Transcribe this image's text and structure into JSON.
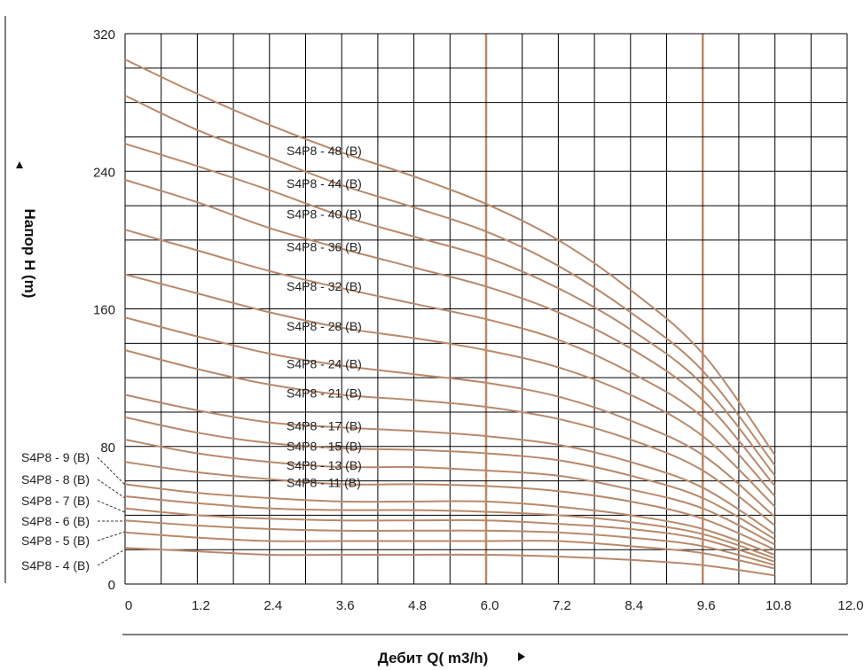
{
  "chart_data": {
    "type": "line",
    "title": "",
    "xlabel": "Дебит Q( m3/h)",
    "ylabel": "Напор H (m)",
    "xlim": [
      0,
      12
    ],
    "ylim": [
      0,
      320
    ],
    "x_ticks": [
      0,
      1.2,
      2.4,
      3.6,
      4.8,
      6.0,
      7.2,
      8.4,
      9.6,
      10.8,
      12.0
    ],
    "x_tick_labels": [
      "0",
      "1.2",
      "2.4",
      "3.6",
      "4.8",
      "6.0",
      "7.2",
      "8.4",
      "9.6",
      "10.8",
      "12.0"
    ],
    "y_ticks": [
      0,
      80,
      160,
      240,
      320
    ],
    "y_tick_labels": [
      "0",
      "80",
      "160",
      "240",
      "320"
    ],
    "grid": true,
    "highlighted_vertical_lines": [
      6.0,
      9.6
    ],
    "curve_color": "#b8896a",
    "series": [
      {
        "name": "S4P8 - 48 (B)",
        "x": [
          0,
          1.2,
          2.4,
          3.6,
          4.8,
          6.0,
          7.2,
          8.4,
          9.6,
          10.8
        ],
        "values": [
          305,
          285,
          267,
          251,
          237,
          221,
          200,
          171,
          134,
          75
        ]
      },
      {
        "name": "S4P8 - 44 (B)",
        "x": [
          0,
          1.2,
          2.4,
          3.6,
          4.8,
          6.0,
          7.2,
          8.4,
          9.6,
          10.8
        ],
        "values": [
          284,
          264,
          248,
          232,
          219,
          205,
          185,
          158,
          124,
          69
        ]
      },
      {
        "name": "S4P8 - 40 (B)",
        "x": [
          0,
          1.2,
          2.4,
          3.6,
          4.8,
          6.0,
          7.2,
          8.4,
          9.6,
          10.8
        ],
        "values": [
          256,
          243,
          229,
          214,
          202,
          190,
          172,
          148,
          116,
          63
        ]
      },
      {
        "name": "S4P8 - 36 (B)",
        "x": [
          0,
          1.2,
          2.4,
          3.6,
          4.8,
          6.0,
          7.2,
          8.4,
          9.6,
          10.8
        ],
        "values": [
          235,
          222,
          207,
          195,
          184,
          173,
          158,
          137,
          107,
          57
        ]
      },
      {
        "name": "S4P8 - 32 (B)",
        "x": [
          0,
          1.2,
          2.4,
          3.6,
          4.8,
          6.0,
          7.2,
          8.4,
          9.6,
          10.8
        ],
        "values": [
          206,
          194,
          182,
          172,
          163,
          154,
          142,
          123,
          97,
          51
        ]
      },
      {
        "name": "S4P8 - 28 (B)",
        "x": [
          0,
          1.2,
          2.4,
          3.6,
          4.8,
          6.0,
          7.2,
          8.4,
          9.6,
          10.8
        ],
        "values": [
          180,
          169,
          158,
          149,
          143,
          136,
          126,
          110,
          86,
          45
        ]
      },
      {
        "name": "S4P8 - 24 (B)",
        "x": [
          0,
          1.2,
          2.4,
          3.6,
          4.8,
          6.0,
          7.2,
          8.4,
          9.6,
          10.8
        ],
        "values": [
          155,
          144,
          134,
          127,
          122,
          117,
          109,
          95,
          75,
          39
        ]
      },
      {
        "name": "S4P8 - 21 (B)",
        "x": [
          0,
          1.2,
          2.4,
          3.6,
          4.8,
          6.0,
          7.2,
          8.4,
          9.6,
          10.8
        ],
        "values": [
          136,
          125,
          116,
          110,
          107,
          103,
          96,
          84,
          66,
          34
        ]
      },
      {
        "name": "S4P8 - 17 (B)",
        "x": [
          0,
          1.2,
          2.4,
          3.6,
          4.8,
          6.0,
          7.2,
          8.4,
          9.6,
          10.8
        ],
        "values": [
          110,
          101,
          94,
          91,
          89,
          86,
          81,
          71,
          56,
          29
        ]
      },
      {
        "name": "S4P8 - 15 (B)",
        "x": [
          0,
          1.2,
          2.4,
          3.6,
          4.8,
          6.0,
          7.2,
          8.4,
          9.6,
          10.8
        ],
        "values": [
          97,
          88,
          82,
          79,
          78,
          76,
          72,
          63,
          50,
          26
        ]
      },
      {
        "name": "S4P8 - 13 (B)",
        "x": [
          0,
          1.2,
          2.4,
          3.6,
          4.8,
          6.0,
          7.2,
          8.4,
          9.6,
          10.8
        ],
        "values": [
          84,
          76,
          71,
          68,
          68,
          66,
          63,
          55,
          44,
          23
        ]
      },
      {
        "name": "S4P8 - 11 (B)",
        "x": [
          0,
          1.2,
          2.4,
          3.6,
          4.8,
          6.0,
          7.2,
          8.4,
          9.6,
          10.8
        ],
        "values": [
          71,
          65,
          61,
          58,
          58,
          57,
          54,
          48,
          38,
          20
        ]
      },
      {
        "name": "S4P8 - 9 (B)",
        "x": [
          0,
          1.2,
          2.4,
          3.6,
          4.8,
          6.0,
          7.2,
          8.4,
          9.6,
          10.8
        ],
        "values": [
          58,
          53,
          50,
          48,
          48,
          48,
          45,
          40,
          32,
          17
        ]
      },
      {
        "name": "S4P8 - 8 (B)",
        "x": [
          0,
          1.2,
          2.4,
          3.6,
          4.8,
          6.0,
          7.2,
          8.4,
          9.6,
          10.8
        ],
        "values": [
          51,
          47,
          44,
          43,
          43,
          42,
          40,
          36,
          29,
          15
        ]
      },
      {
        "name": "S4P8 - 7 (B)",
        "x": [
          0,
          1.2,
          2.4,
          3.6,
          4.8,
          6.0,
          7.2,
          8.4,
          9.6,
          10.8
        ],
        "values": [
          44,
          40,
          38,
          37,
          37,
          37,
          35,
          32,
          26,
          13
        ]
      },
      {
        "name": "S4P8 - 6 (B)",
        "x": [
          0,
          1.2,
          2.4,
          3.6,
          4.8,
          6.0,
          7.2,
          8.4,
          9.6,
          10.8
        ],
        "values": [
          37,
          34,
          32,
          31,
          31,
          31,
          30,
          27,
          22,
          11
        ]
      },
      {
        "name": "S4P8 - 5 (B)",
        "x": [
          0,
          1.2,
          2.4,
          3.6,
          4.8,
          6.0,
          7.2,
          8.4,
          9.6,
          10.8
        ],
        "values": [
          30,
          27,
          25,
          25,
          25,
          25,
          25,
          22,
          18,
          9
        ]
      },
      {
        "name": "S4P8 - 4 (B)",
        "x": [
          0,
          1.2,
          2.4,
          3.6,
          4.8,
          6.0,
          7.2,
          8.4,
          9.6,
          10.8
        ],
        "values": [
          21,
          19,
          17,
          17,
          17,
          17,
          16,
          14,
          11,
          5
        ]
      }
    ]
  }
}
